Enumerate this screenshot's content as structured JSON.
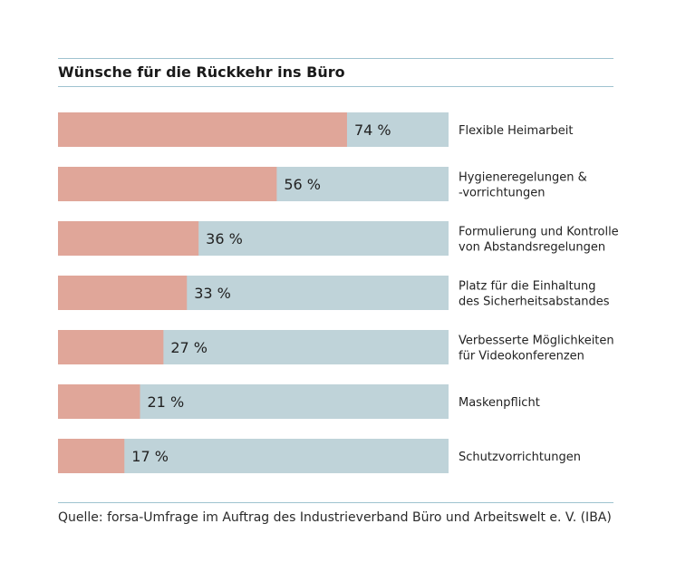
{
  "title": "Wünsche für die Rückkehr ins Büro",
  "source": "Quelle: forsa-Umfrage im Auftrag des Industrieverband Büro und Arbeitswelt e. V. (IBA)",
  "colors": {
    "value_bar": "#e0a699",
    "track_bar": "#bfd3d9",
    "rule": "#9fc3d0",
    "text": "#222222"
  },
  "chart_data": {
    "type": "bar",
    "orientation": "horizontal",
    "unit": "%",
    "xlim": [
      0,
      100
    ],
    "categories": [
      [
        "Flexible Heimarbeit"
      ],
      [
        "Hygieneregelungen &",
        "-vorrichtungen"
      ],
      [
        "Formulierung und Kontrolle",
        "von Abstandsregelungen"
      ],
      [
        "Platz für die Einhaltung",
        "des Sicherheitsabstandes"
      ],
      [
        "Verbesserte Möglichkeiten",
        "für Videokonferenzen"
      ],
      [
        "Maskenpflicht"
      ],
      [
        "Schutzvorrichtungen"
      ]
    ],
    "values": [
      74,
      56,
      36,
      33,
      27,
      21,
      17
    ],
    "value_labels": [
      "74 %",
      "56 %",
      "36 %",
      "33 %",
      "27 %",
      "21 %",
      "17 %"
    ]
  }
}
